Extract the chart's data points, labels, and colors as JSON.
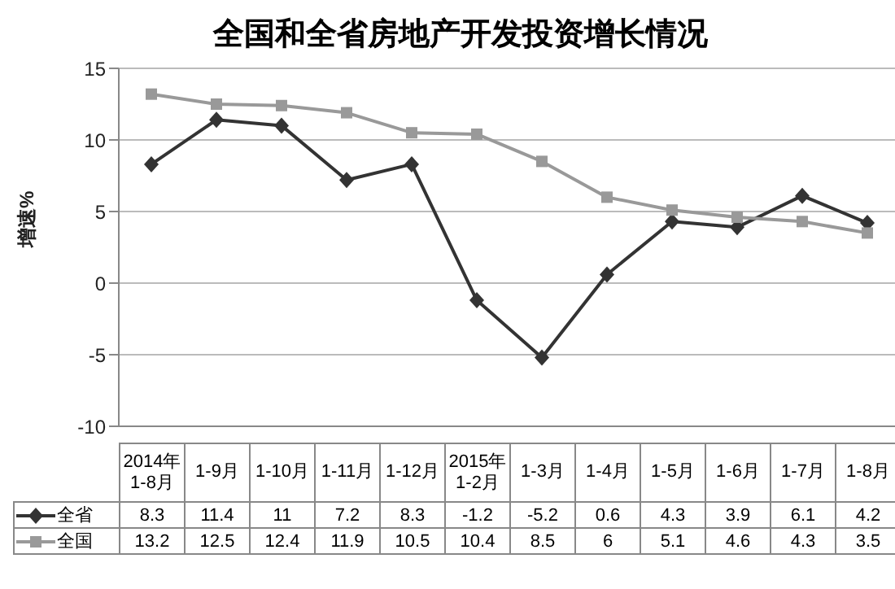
{
  "chart_data": {
    "type": "line",
    "title": "全国和全省房地产开发投资增长情况",
    "ylabel": "增速%",
    "categories": [
      "2014年1-8月",
      "1-9月",
      "1-10月",
      "1-11月",
      "1-12月",
      "2015年1-2月",
      "1-3月",
      "1-4月",
      "1-5月",
      "1-6月",
      "1-7月",
      "1-8月"
    ],
    "series": [
      {
        "name": "全省",
        "color": "#333333",
        "marker": "diamond",
        "values": [
          8.3,
          11.4,
          11,
          7.2,
          8.3,
          -1.2,
          -5.2,
          0.6,
          4.3,
          3.9,
          6.1,
          4.2
        ]
      },
      {
        "name": "全国",
        "color": "#999999",
        "marker": "square",
        "values": [
          13.2,
          12.5,
          12.4,
          11.9,
          10.5,
          10.4,
          8.5,
          6.0,
          5.1,
          4.6,
          4.3,
          3.5
        ]
      }
    ],
    "ylim": [
      -10,
      15
    ],
    "yticks": [
      -10,
      -5,
      0,
      5,
      10,
      15
    ],
    "grid": "y",
    "legend": "bottom",
    "data_labels": true,
    "line_style": "solid"
  }
}
